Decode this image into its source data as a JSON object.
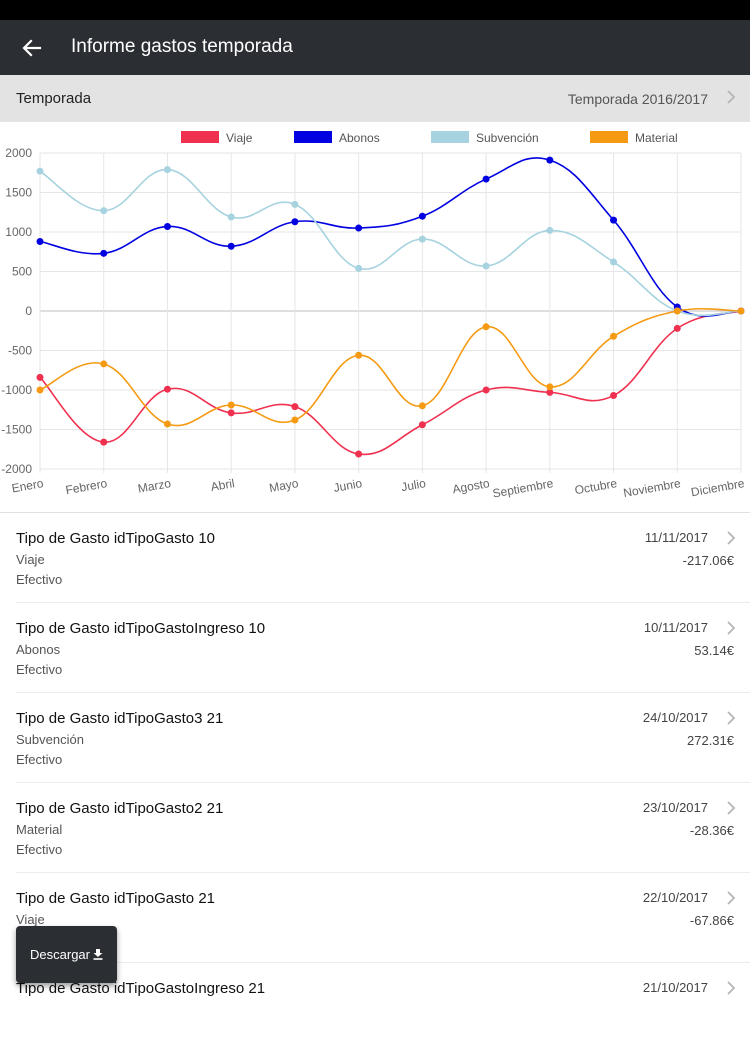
{
  "appbar": {
    "title": "Informe gastos temporada"
  },
  "season": {
    "label": "Temporada",
    "value": "Temporada 2016/2017"
  },
  "chart_data": {
    "type": "line",
    "categories": [
      "Enero",
      "Febrero",
      "Marzo",
      "Abril",
      "Mayo",
      "Junio",
      "Julio",
      "Agosto",
      "Septiembre",
      "Octubre",
      "Noviembre",
      "Diciembre"
    ],
    "ylim": [
      -2000,
      2000
    ],
    "yticks": [
      2000,
      1500,
      1000,
      500,
      0,
      -500,
      -1000,
      -1500,
      -2000
    ],
    "grid": true,
    "legend_position": "top",
    "series": [
      {
        "name": "Viaje",
        "color": "#f0304f",
        "values": [
          -840,
          -1660,
          -990,
          -1290,
          -1210,
          -1810,
          -1440,
          -1000,
          -1030,
          -1070,
          -220,
          0
        ]
      },
      {
        "name": "Abonos",
        "color": "#0000e0",
        "values": [
          880,
          730,
          1070,
          820,
          1130,
          1050,
          1200,
          1670,
          1910,
          1150,
          50,
          0
        ]
      },
      {
        "name": "Subvención",
        "color": "#a6d3df",
        "values": [
          1770,
          1270,
          1790,
          1190,
          1350,
          540,
          910,
          570,
          1020,
          620,
          0,
          0
        ]
      },
      {
        "name": "Material",
        "color": "#f59a12",
        "values": [
          -1000,
          -670,
          -1430,
          -1190,
          -1380,
          -560,
          -1200,
          -200,
          -960,
          -320,
          0,
          0
        ]
      }
    ]
  },
  "items": [
    {
      "title": "Tipo de Gasto idTipoGasto 10",
      "category": "Viaje",
      "payment": "Efectivo",
      "date": "11/11/2017",
      "amount": "-217.06€"
    },
    {
      "title": "Tipo de Gasto idTipoGastoIngreso 10",
      "category": "Abonos",
      "payment": "Efectivo",
      "date": "10/11/2017",
      "amount": "53.14€"
    },
    {
      "title": "Tipo de Gasto idTipoGasto3 21",
      "category": "Subvención",
      "payment": "Efectivo",
      "date": "24/10/2017",
      "amount": "272.31€"
    },
    {
      "title": "Tipo de Gasto idTipoGasto2 21",
      "category": "Material",
      "payment": "Efectivo",
      "date": "23/10/2017",
      "amount": "-28.36€"
    },
    {
      "title": "Tipo de Gasto idTipoGasto 21",
      "category": "Viaje",
      "payment": "",
      "date": "22/10/2017",
      "amount": "-67.86€"
    },
    {
      "title": "Tipo de Gasto idTipoGastoIngreso 21",
      "category": "",
      "payment": "",
      "date": "21/10/2017",
      "amount": ""
    }
  ],
  "fab": {
    "label": "Descargar",
    "icon": "download-icon"
  },
  "icons": {
    "back": "arrow-left-icon",
    "chevron": "chevron-right-icon"
  }
}
